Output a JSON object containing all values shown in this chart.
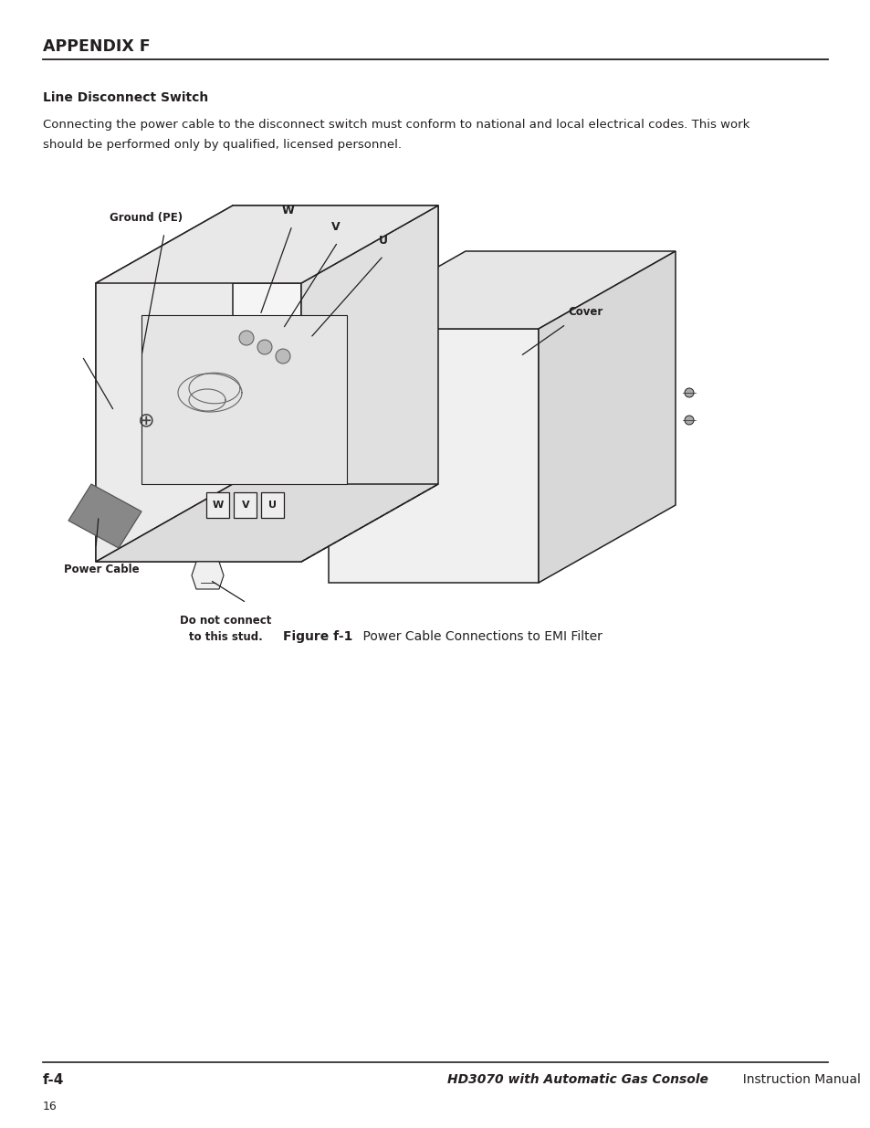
{
  "page_title": "APPENDIX F",
  "section_title": "Line Disconnect Switch",
  "body_text_line1": "Connecting the power cable to the disconnect switch must conform to national and local electrical codes. This work",
  "body_text_line2": "should be performed only by qualified, licensed personnel.",
  "figure_caption_bold": "Figure f-1",
  "figure_caption_normal": "    Power Cable Connections to EMI Filter",
  "footer_left": "f-4",
  "footer_right_bold": "HD3070 with Automatic Gas Console",
  "footer_right_normal": "  Instruction Manual",
  "footer_page": "16",
  "bg_color": "#ffffff",
  "text_color": "#231f20",
  "line_color": "#231f20"
}
